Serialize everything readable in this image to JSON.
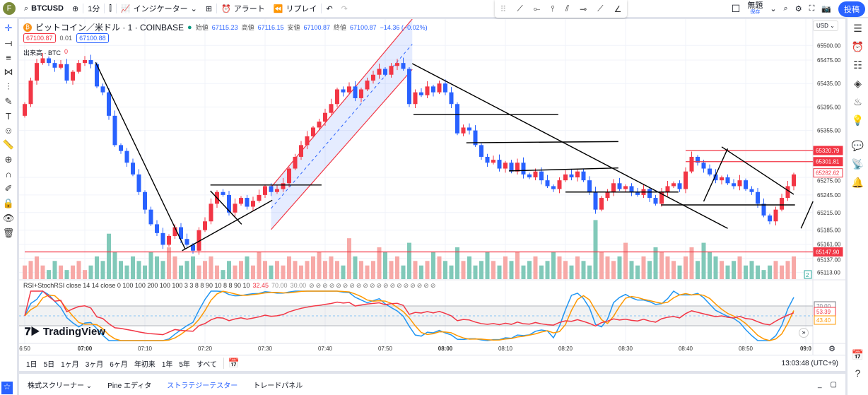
{
  "toolbar": {
    "avatar": "F",
    "symbol": "BTCUSD",
    "interval": "1分",
    "indicators": "インジケーター",
    "alert": "アラート",
    "replay": "リプレイ",
    "layout_name": "無題",
    "layout_save": "保存",
    "post": "投稿"
  },
  "legend": {
    "title": "ビットコイン／米ドル · 1 · COINBASE",
    "open_label": "始値",
    "open": "67115.23",
    "high_label": "高値",
    "high": "67116.15",
    "low_label": "安値",
    "low": "67100.87",
    "close_label": "終値",
    "close": "67100.87",
    "change": "−14.36 (−0.02%)",
    "bid": "67100.87",
    "spread": "0.01",
    "ask": "67100.88",
    "volume_label": "出来高 · BTC",
    "volume_value": "0"
  },
  "rsi_legend": {
    "text": "RSI+StochRSI close 14 14 close 0 100 100 200 100 100 3 3 8 8 90 10 8 8 90 10",
    "v1": "32.45",
    "v2": "70.00",
    "v3": "30.00"
  },
  "currency": "USD",
  "price_axis": {
    "ticks": [
      "65500.00",
      "65475.00",
      "65435.00",
      "65395.00",
      "65355.00",
      "65275.00",
      "65245.00",
      "65215.00",
      "65185.00",
      "65161.00",
      "65137.00",
      "65113.00"
    ],
    "labels": [
      {
        "text": "65320.79",
        "price": 65320.79,
        "color": "#f23645",
        "filled": true
      },
      {
        "text": "65301.81",
        "price": 65301.81,
        "color": "#f23645",
        "filled": true
      },
      {
        "text": "65282.62",
        "price": 65282.62,
        "color": "#f23645",
        "filled": false
      },
      {
        "text": "65147.90",
        "price": 65147.9,
        "color": "#f23645",
        "filled": true
      }
    ],
    "volume_badge": "2",
    "rsi_labels": {
      "upper": "70.00",
      "rsi": "53.39",
      "stoch": "43.40"
    }
  },
  "time_axis": [
    "6:50",
    "07:00",
    "07:10",
    "07:20",
    "07:30",
    "07:40",
    "07:50",
    "08:00",
    "08:10",
    "08:20",
    "08:30",
    "08:40",
    "08:50",
    "09:0"
  ],
  "range_buttons": [
    "1日",
    "5日",
    "1ヶ月",
    "3ヶ月",
    "6ヶ月",
    "年初来",
    "1年",
    "5年",
    "すべて"
  ],
  "clock": "13:03:48 (UTC+9)",
  "bottom_tabs": [
    "株式スクリーナー",
    "Pine エディタ",
    "ストラテジーテスター",
    "トレードパネル"
  ],
  "watermark": "TradingView",
  "colors": {
    "up": "#f23645",
    "down": "#2962ff",
    "vol_up": "#f7a9a7",
    "vol_down": "#81c9b9",
    "rsi": "#f23645",
    "k": "#2196f3",
    "d": "#ff9800"
  },
  "chart_data": {
    "type": "candlestick",
    "start": "06:50",
    "interval_min": 1,
    "closes": [
      65400,
      65440,
      65470,
      65478,
      65470,
      65462,
      65468,
      65440,
      65455,
      65470,
      65475,
      65468,
      65430,
      65420,
      65380,
      65330,
      65320,
      65300,
      65280,
      65250,
      65220,
      65195,
      65180,
      65160,
      65175,
      65190,
      65170,
      65160,
      65150,
      65185,
      65200,
      65230,
      65250,
      65245,
      65215,
      65230,
      65240,
      65225,
      65235,
      65245,
      65260,
      65250,
      65255,
      65265,
      65290,
      65310,
      65330,
      65345,
      65360,
      65370,
      65385,
      65400,
      65425,
      65420,
      65430,
      65410,
      65425,
      65440,
      65450,
      65460,
      65450,
      65465,
      65470,
      65460,
      65400,
      65420,
      65415,
      65430,
      65420,
      65435,
      65420,
      65400,
      65350,
      65360,
      65355,
      65330,
      65310,
      65300,
      65305,
      65290,
      65300,
      65285,
      65300,
      65280,
      65275,
      65285,
      65270,
      65260,
      65255,
      65270,
      65280,
      65275,
      65285,
      65270,
      65250,
      65220,
      65240,
      65250,
      65265,
      65255,
      65260,
      65250,
      65245,
      65255,
      65240,
      65230,
      65250,
      65260,
      65265,
      65255,
      65285,
      65310,
      65300,
      65290,
      65280,
      65270,
      65275,
      65265,
      65260,
      65270,
      65255,
      65250,
      65230,
      65210,
      65200,
      65220,
      65240,
      65260,
      65280
    ],
    "volumes": [
      3,
      4,
      5,
      3,
      2,
      4,
      3,
      2,
      3,
      4,
      2,
      3,
      5,
      4,
      10,
      6,
      4,
      3,
      5,
      4,
      3,
      6,
      5,
      4,
      7,
      5,
      3,
      4,
      5,
      3,
      4,
      5,
      3,
      2,
      4,
      3,
      4,
      5,
      3,
      6,
      4,
      3,
      4,
      3,
      5,
      4,
      3,
      4,
      5,
      6,
      4,
      5,
      4,
      3,
      9,
      5,
      4,
      3,
      4,
      7,
      6,
      4,
      5,
      3,
      8,
      4,
      3,
      4,
      6,
      5,
      4,
      3,
      7,
      4,
      5,
      3,
      4,
      6,
      4,
      3,
      5,
      4,
      6,
      3,
      4,
      5,
      3,
      4,
      6,
      5,
      4,
      3,
      5,
      4,
      3,
      13,
      6,
      5,
      4,
      5,
      8,
      4,
      3,
      5,
      4,
      7,
      6,
      5,
      4,
      3,
      5,
      7,
      4,
      8,
      6,
      5,
      4,
      3,
      4,
      5,
      3,
      4,
      3,
      2,
      3,
      4,
      3,
      4,
      5
    ],
    "price_range": [
      65100,
      65545
    ],
    "horizontal_lines": [
      {
        "price": 65147.9,
        "from": 0,
        "color": "#f23645"
      },
      {
        "price": 65320.79,
        "from": 110,
        "color": "#f23645"
      },
      {
        "price": 65301.81,
        "from": 110,
        "color": "#f23645"
      }
    ],
    "channel": {
      "upper": [
        [
          41,
          65258
        ],
        [
          64.5,
          65545
        ]
      ],
      "lower": [
        [
          41,
          65186
        ],
        [
          64.5,
          65459
        ]
      ]
    },
    "trend_lines": [
      [
        [
          11.8,
          65471
        ],
        [
          26.7,
          65153
        ]
      ],
      [
        [
          26.2,
          65150
        ],
        [
          41.2,
          65236
        ]
      ],
      [
        [
          30.9,
          65262
        ],
        [
          49.4,
          65262
        ]
      ],
      [
        [
          30.9,
          65252
        ],
        [
          36.1,
          65195
        ]
      ],
      [
        [
          64.5,
          65469
        ],
        [
          117,
          65188
        ]
      ],
      [
        [
          64.7,
          65382
        ],
        [
          88.8,
          65382
        ]
      ],
      [
        [
          73.5,
          65334
        ],
        [
          98.8,
          65336
        ]
      ],
      [
        [
          80.6,
          65286
        ],
        [
          98.8,
          65291
        ]
      ],
      [
        [
          90,
          65250
        ],
        [
          108.8,
          65250
        ]
      ],
      [
        [
          105.9,
          65228
        ],
        [
          128.2,
          65228
        ]
      ],
      [
        [
          113,
          65234
        ],
        [
          117,
          65324
        ]
      ],
      [
        [
          116,
          65327
        ],
        [
          128,
          65246
        ]
      ],
      [
        [
          129.2,
          65188
        ],
        [
          131.2,
          65234
        ]
      ]
    ]
  }
}
